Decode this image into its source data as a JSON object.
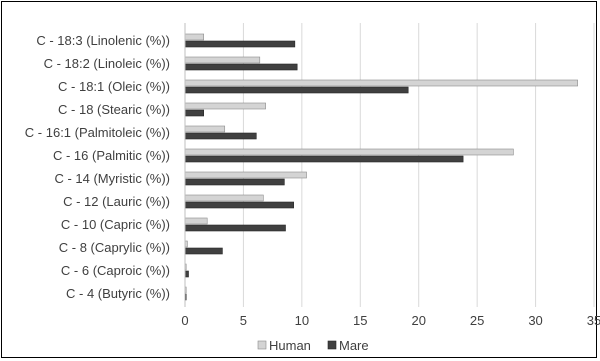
{
  "chart_data": {
    "type": "bar",
    "orientation": "horizontal",
    "categories": [
      "C - 18:3 (Linolenic (%))",
      "C - 18:2 (Linoleic (%))",
      "C - 18:1 (Oleic (%))",
      "C - 18 (Stearic (%))",
      "C - 16:1 (Palmitoleic (%))",
      "C - 16 (Palmitic (%))",
      "C - 14 (Myristic (%))",
      "C - 12 (Lauric (%))",
      "C - 10 (Capric (%))",
      "C - 8 (Caprylic (%))",
      "C - 6 (Caproic (%))",
      "C - 4 (Butyric (%))"
    ],
    "series": [
      {
        "name": "Human",
        "color": "#d4d4d4",
        "values": [
          1.6,
          6.4,
          33.6,
          6.9,
          3.4,
          28.1,
          10.4,
          6.7,
          1.9,
          0.2,
          0.1,
          0.1
        ]
      },
      {
        "name": "Mare",
        "color": "#404040",
        "values": [
          9.4,
          9.6,
          19.1,
          1.6,
          6.1,
          23.8,
          8.5,
          9.3,
          8.6,
          3.2,
          0.3,
          0.1
        ]
      }
    ],
    "xlim": [
      0,
      35
    ],
    "xticks": [
      "0",
      "5",
      "10",
      "15",
      "20",
      "25",
      "30",
      "35"
    ],
    "grid": true,
    "legend_position": "bottom",
    "title": "",
    "xlabel": "",
    "ylabel": ""
  }
}
